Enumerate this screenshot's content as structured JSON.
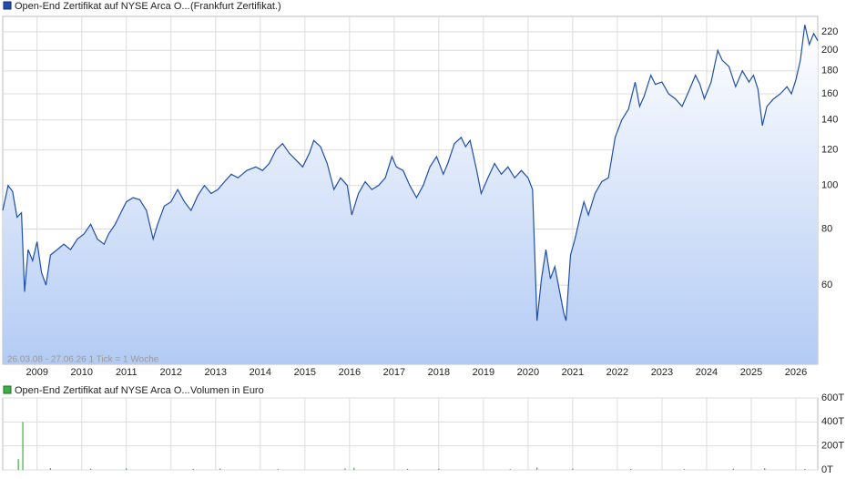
{
  "chart_data": [
    {
      "type": "area",
      "title": "Open-End Zertifikat auf NYSE Arca O...",
      "subtitle": "(Frankfurt Zertifikat.)",
      "annotation": "26.03.08 - 27.06.26   1 Tick = 1 Woche",
      "log_scale": true,
      "grid": true,
      "xlim": [
        2008.23,
        2026.49
      ],
      "xticks": [
        2009,
        2010,
        2011,
        2012,
        2013,
        2014,
        2015,
        2016,
        2017,
        2018,
        2019,
        2020,
        2021,
        2022,
        2023,
        2024,
        2025,
        2026
      ],
      "ylim": [
        40,
        238
      ],
      "yticks": [
        60,
        80,
        100,
        120,
        140,
        160,
        180,
        200,
        220
      ],
      "x": [
        2008.23,
        2008.35,
        2008.45,
        2008.55,
        2008.65,
        2008.72,
        2008.8,
        2008.9,
        2009.0,
        2009.1,
        2009.2,
        2009.3,
        2009.45,
        2009.6,
        2009.75,
        2009.9,
        2010.05,
        2010.2,
        2010.35,
        2010.5,
        2010.6,
        2010.75,
        2010.9,
        2011.0,
        2011.15,
        2011.3,
        2011.45,
        2011.6,
        2011.7,
        2011.85,
        2012.0,
        2012.15,
        2012.3,
        2012.45,
        2012.6,
        2012.75,
        2012.9,
        2013.05,
        2013.2,
        2013.35,
        2013.5,
        2013.7,
        2013.9,
        2014.05,
        2014.2,
        2014.35,
        2014.5,
        2014.65,
        2014.8,
        2014.95,
        2015.1,
        2015.2,
        2015.35,
        2015.5,
        2015.65,
        2015.8,
        2015.95,
        2016.05,
        2016.2,
        2016.35,
        2016.5,
        2016.65,
        2016.8,
        2016.95,
        2017.05,
        2017.2,
        2017.35,
        2017.5,
        2017.65,
        2017.8,
        2017.95,
        2018.1,
        2018.2,
        2018.35,
        2018.5,
        2018.6,
        2018.7,
        2018.85,
        2018.95,
        2019.1,
        2019.25,
        2019.4,
        2019.55,
        2019.7,
        2019.85,
        2020.0,
        2020.1,
        2020.2,
        2020.3,
        2020.4,
        2020.5,
        2020.6,
        2020.8,
        2020.85,
        2020.95,
        2021.05,
        2021.15,
        2021.25,
        2021.35,
        2021.5,
        2021.65,
        2021.8,
        2021.95,
        2022.1,
        2022.25,
        2022.4,
        2022.5,
        2022.6,
        2022.75,
        2022.85,
        2023.0,
        2023.15,
        2023.3,
        2023.45,
        2023.6,
        2023.75,
        2023.85,
        2023.95,
        2024.1,
        2024.25,
        2024.35,
        2024.5,
        2024.65,
        2024.8,
        2024.95,
        2025.05,
        2025.15,
        2025.25,
        2025.35,
        2025.5,
        2025.65,
        2025.8,
        2025.9,
        2026.0,
        2026.1,
        2026.2,
        2026.3,
        2026.4,
        2026.49
      ],
      "series": [
        {
          "name": "Open-End Zertifikat auf NYSE Arca O...",
          "color": "#1f4fa8",
          "values": [
            88,
            100,
            97,
            85,
            87,
            58,
            72,
            68,
            75,
            64,
            60,
            70,
            72,
            74,
            72,
            76,
            78,
            82,
            76,
            74,
            78,
            82,
            88,
            92,
            94,
            93,
            88,
            76,
            82,
            90,
            92,
            98,
            92,
            88,
            95,
            100,
            96,
            98,
            102,
            106,
            104,
            108,
            110,
            108,
            112,
            120,
            124,
            118,
            114,
            110,
            118,
            126,
            122,
            112,
            98,
            104,
            100,
            86,
            96,
            102,
            98,
            100,
            104,
            116,
            110,
            108,
            100,
            94,
            100,
            110,
            116,
            106,
            112,
            124,
            128,
            122,
            126,
            108,
            96,
            104,
            112,
            106,
            110,
            104,
            108,
            104,
            98,
            50,
            62,
            72,
            62,
            66,
            52,
            50,
            70,
            76,
            84,
            92,
            86,
            96,
            102,
            104,
            128,
            140,
            148,
            170,
            150,
            158,
            176,
            168,
            170,
            160,
            156,
            150,
            162,
            176,
            168,
            156,
            170,
            200,
            190,
            184,
            166,
            180,
            170,
            176,
            164,
            136,
            150,
            156,
            160,
            166,
            160,
            172,
            190,
            228,
            206,
            218,
            210
          ]
        }
      ]
    },
    {
      "type": "bar",
      "title": "Open-End Zertifikat auf NYSE Arca O...",
      "subtitle": "Volumen in Euro",
      "grid": true,
      "xlim": [
        2008.23,
        2026.49
      ],
      "ylim": [
        0,
        600
      ],
      "yticks": [
        {
          "value": 0,
          "label": "0T"
        },
        {
          "value": 200,
          "label": "200T"
        },
        {
          "value": 400,
          "label": "400T"
        },
        {
          "value": 600,
          "label": "600T"
        }
      ],
      "x": [
        2008.58,
        2008.68,
        2009.3,
        2010.2,
        2011.0,
        2012.5,
        2013.1,
        2014.4,
        2015.9,
        2016.1,
        2017.3,
        2018.0,
        2019.6,
        2020.2,
        2021.0,
        2022.3,
        2023.5,
        2024.6,
        2025.3,
        2026.2
      ],
      "series": [
        {
          "name": "Open-End Zertifikat auf NYSE Arca O...",
          "color": "#3cb043",
          "values": [
            90,
            400,
            15,
            10,
            12,
            8,
            10,
            6,
            12,
            18,
            8,
            10,
            6,
            20,
            10,
            8,
            6,
            10,
            14,
            8
          ]
        }
      ]
    }
  ]
}
